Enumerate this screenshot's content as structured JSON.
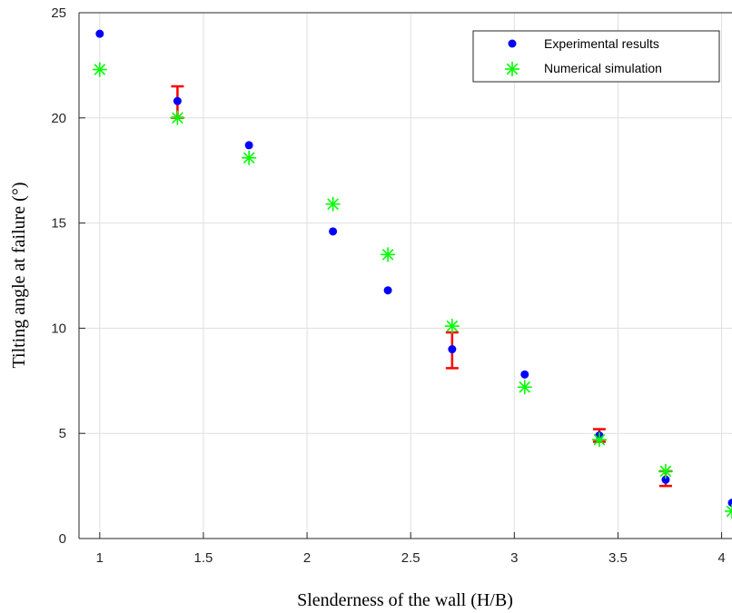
{
  "chart_data": {
    "type": "scatter",
    "xlabel": "Slenderness of the wall (H/B)",
    "ylabel": "Tilting angle at failure (°)",
    "xlim": [
      0.9,
      4.05
    ],
    "ylim": [
      0,
      25
    ],
    "xticks": [
      1,
      1.5,
      2,
      2.5,
      3,
      3.5,
      4
    ],
    "xtick_labels": [
      "1",
      "1.5",
      "2",
      "2.5",
      "3",
      "3.5",
      "4"
    ],
    "yticks": [
      0,
      5,
      10,
      15,
      20,
      25
    ],
    "ytick_labels": [
      "0",
      "5",
      "10",
      "15",
      "20",
      "25"
    ],
    "grid": true,
    "legend_position": "top-right",
    "series": [
      {
        "name": "Experimental results",
        "marker": "dot",
        "color": "#0000ff",
        "x": [
          1.0,
          1.375,
          1.72,
          2.125,
          2.39,
          2.7,
          3.05,
          3.41,
          3.73,
          4.05
        ],
        "y": [
          24.0,
          20.8,
          18.7,
          14.6,
          11.8,
          9.0,
          7.8,
          4.9,
          2.8,
          1.7
        ]
      },
      {
        "name": "Numerical simulation",
        "marker": "asterisk",
        "color": "#00ff00",
        "x": [
          1.0,
          1.375,
          1.72,
          2.125,
          2.39,
          2.7,
          3.05,
          3.41,
          3.73,
          4.05
        ],
        "y": [
          22.3,
          20.0,
          18.1,
          15.9,
          13.5,
          10.1,
          7.2,
          4.7,
          3.2,
          1.3
        ]
      }
    ],
    "error_bars": {
      "color": "#ff0000",
      "items": [
        {
          "x": 1.375,
          "low": 20.0,
          "high": 21.5
        },
        {
          "x": 2.7,
          "low": 8.1,
          "high": 9.8
        },
        {
          "x": 3.41,
          "low": 4.6,
          "high": 5.2
        },
        {
          "x": 3.73,
          "low": 2.5,
          "high": 3.2
        }
      ]
    }
  }
}
